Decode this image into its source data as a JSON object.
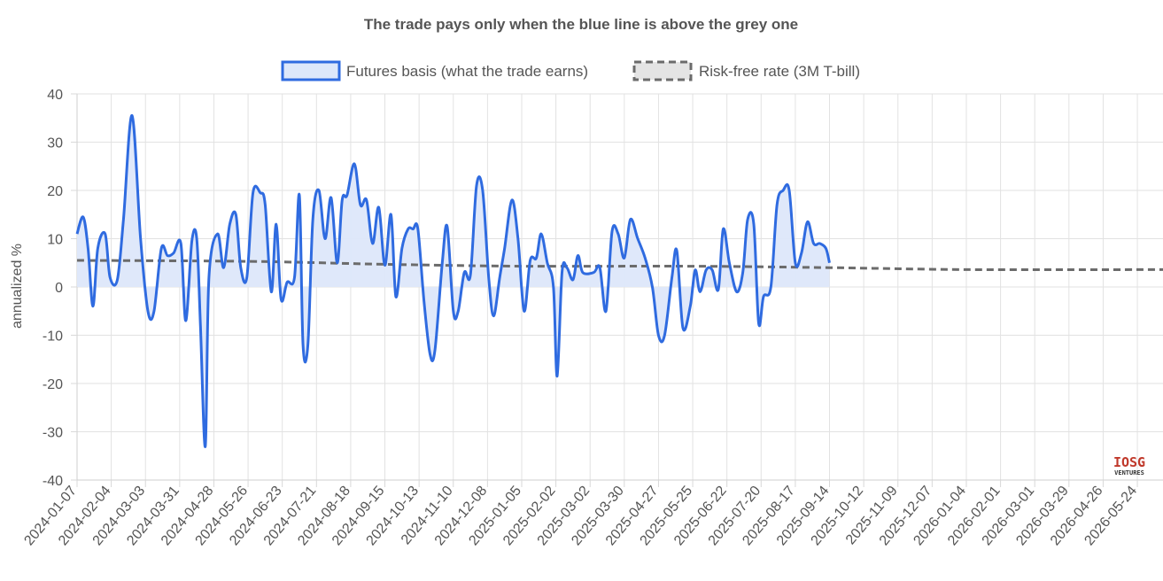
{
  "chart_data": {
    "type": "line",
    "title": "The trade pays only when the blue line is above the grey one",
    "ylabel": "annualized %",
    "xlabel": "",
    "ylim": [
      -40,
      40
    ],
    "yticks": [
      40,
      30,
      20,
      10,
      0,
      -10,
      -20,
      -30,
      -40
    ],
    "legend": "top-center",
    "grid": true,
    "colors": {
      "basis": "#2f6be0",
      "basis_fill": "#dde7fa",
      "rate": "#6b6b6b"
    },
    "x_tick_labels": [
      "2024-01-07",
      "2024-02-04",
      "2024-03-03",
      "2024-03-31",
      "2024-04-28",
      "2024-05-26",
      "2024-06-23",
      "2024-07-21",
      "2024-08-18",
      "2024-09-15",
      "2024-10-13",
      "2024-11-10",
      "2024-12-08",
      "2025-01-05",
      "2025-02-02",
      "2025-03-02",
      "2025-03-30",
      "2025-04-27",
      "2025-05-25",
      "2025-06-22",
      "2025-07-20",
      "2025-08-17",
      "2025-09-14",
      "2025-10-12",
      "2025-11-09",
      "2025-12-07",
      "2026-01-04",
      "2026-02-01",
      "2026-03-01",
      "2026-03-29",
      "2026-04-26",
      "2026-05-24"
    ],
    "x_start": "2024-01-07",
    "x_end": "2026-06-14",
    "series": [
      {
        "name": "Futures basis (what the trade earns)",
        "style": "solid-filled",
        "points": [
          [
            "2024-01-07",
            11
          ],
          [
            "2024-01-12",
            14.5
          ],
          [
            "2024-01-16",
            8
          ],
          [
            "2024-01-20",
            -4
          ],
          [
            "2024-01-24",
            8
          ],
          [
            "2024-01-30",
            11
          ],
          [
            "2024-02-03",
            2
          ],
          [
            "2024-02-09",
            1.5
          ],
          [
            "2024-02-14",
            14
          ],
          [
            "2024-02-21",
            35.5
          ],
          [
            "2024-02-28",
            10
          ],
          [
            "2024-03-05",
            -5
          ],
          [
            "2024-03-10",
            -5
          ],
          [
            "2024-03-16",
            8
          ],
          [
            "2024-03-21",
            6.5
          ],
          [
            "2024-03-26",
            7
          ],
          [
            "2024-04-01",
            9
          ],
          [
            "2024-04-05",
            -7
          ],
          [
            "2024-04-10",
            9.5
          ],
          [
            "2024-04-14",
            10
          ],
          [
            "2024-04-17",
            -8
          ],
          [
            "2024-04-21",
            -33
          ],
          [
            "2024-04-24",
            2
          ],
          [
            "2024-05-01",
            11
          ],
          [
            "2024-05-06",
            4
          ],
          [
            "2024-05-11",
            13
          ],
          [
            "2024-05-16",
            15
          ],
          [
            "2024-05-20",
            4
          ],
          [
            "2024-05-25",
            2
          ],
          [
            "2024-05-30",
            19.5
          ],
          [
            "2024-06-05",
            19.5
          ],
          [
            "2024-06-09",
            17
          ],
          [
            "2024-06-14",
            -1
          ],
          [
            "2024-06-18",
            13
          ],
          [
            "2024-06-22",
            -2.5
          ],
          [
            "2024-06-27",
            1
          ],
          [
            "2024-07-03",
            2
          ],
          [
            "2024-07-07",
            19
          ],
          [
            "2024-07-10",
            -12
          ],
          [
            "2024-07-14",
            -12
          ],
          [
            "2024-07-18",
            14
          ],
          [
            "2024-07-23",
            20
          ],
          [
            "2024-07-28",
            10
          ],
          [
            "2024-08-02",
            18.5
          ],
          [
            "2024-08-07",
            5
          ],
          [
            "2024-08-11",
            18
          ],
          [
            "2024-08-15",
            19
          ],
          [
            "2024-08-21",
            25.5
          ],
          [
            "2024-08-26",
            17
          ],
          [
            "2024-08-31",
            18
          ],
          [
            "2024-09-05",
            9
          ],
          [
            "2024-09-10",
            16.5
          ],
          [
            "2024-09-15",
            4.5
          ],
          [
            "2024-09-20",
            15
          ],
          [
            "2024-09-24",
            -2
          ],
          [
            "2024-09-29",
            8
          ],
          [
            "2024-10-04",
            12
          ],
          [
            "2024-10-08",
            12
          ],
          [
            "2024-10-12",
            12
          ],
          [
            "2024-10-17",
            -3
          ],
          [
            "2024-10-22",
            -14
          ],
          [
            "2024-10-26",
            -13
          ],
          [
            "2024-11-01",
            5
          ],
          [
            "2024-11-05",
            12.5
          ],
          [
            "2024-11-10",
            -5
          ],
          [
            "2024-11-14",
            -5
          ],
          [
            "2024-11-19",
            3
          ],
          [
            "2024-11-24",
            2.5
          ],
          [
            "2024-11-29",
            21
          ],
          [
            "2024-12-04",
            20
          ],
          [
            "2024-12-09",
            2
          ],
          [
            "2024-12-13",
            -6
          ],
          [
            "2024-12-18",
            2
          ],
          [
            "2024-12-22",
            8
          ],
          [
            "2024-12-28",
            18
          ],
          [
            "2025-01-02",
            10
          ],
          [
            "2025-01-07",
            -5
          ],
          [
            "2025-01-12",
            5.5
          ],
          [
            "2025-01-17",
            6
          ],
          [
            "2025-01-21",
            11
          ],
          [
            "2025-01-26",
            5
          ],
          [
            "2025-01-31",
            0
          ],
          [
            "2025-02-03",
            -18.5
          ],
          [
            "2025-02-07",
            3
          ],
          [
            "2025-02-11",
            4
          ],
          [
            "2025-02-16",
            1.5
          ],
          [
            "2025-02-20",
            6.5
          ],
          [
            "2025-02-24",
            3
          ],
          [
            "2025-03-05",
            3
          ],
          [
            "2025-03-10",
            4
          ],
          [
            "2025-03-15",
            -5
          ],
          [
            "2025-03-20",
            11.5
          ],
          [
            "2025-03-25",
            11
          ],
          [
            "2025-03-30",
            6
          ],
          [
            "2025-04-04",
            14
          ],
          [
            "2025-04-10",
            10
          ],
          [
            "2025-04-16",
            6
          ],
          [
            "2025-04-22",
            0
          ],
          [
            "2025-04-27",
            -10
          ],
          [
            "2025-05-02",
            -10
          ],
          [
            "2025-05-08",
            2
          ],
          [
            "2025-05-12",
            7.5
          ],
          [
            "2025-05-17",
            -8.5
          ],
          [
            "2025-05-23",
            -4
          ],
          [
            "2025-05-27",
            3.5
          ],
          [
            "2025-05-31",
            -1
          ],
          [
            "2025-06-05",
            3.5
          ],
          [
            "2025-06-10",
            3.5
          ],
          [
            "2025-06-15",
            -0.5
          ],
          [
            "2025-06-19",
            12
          ],
          [
            "2025-06-24",
            5
          ],
          [
            "2025-06-30",
            -1
          ],
          [
            "2025-07-05",
            3
          ],
          [
            "2025-07-09",
            14
          ],
          [
            "2025-07-14",
            13
          ],
          [
            "2025-07-18",
            -7.5
          ],
          [
            "2025-07-22",
            -2
          ],
          [
            "2025-07-28",
            0
          ],
          [
            "2025-08-02",
            17
          ],
          [
            "2025-08-07",
            20
          ],
          [
            "2025-08-12",
            20
          ],
          [
            "2025-08-17",
            5
          ],
          [
            "2025-08-22",
            7
          ],
          [
            "2025-08-27",
            13.5
          ],
          [
            "2025-09-01",
            9
          ],
          [
            "2025-09-06",
            9
          ],
          [
            "2025-09-11",
            8
          ],
          [
            "2025-09-14",
            5
          ]
        ]
      },
      {
        "name": "Risk-free rate (3M T-bill)",
        "style": "dashed",
        "points": [
          [
            "2024-01-07",
            5.5
          ],
          [
            "2024-05-26",
            5.3
          ],
          [
            "2024-09-15",
            4.7
          ],
          [
            "2025-01-05",
            4.3
          ],
          [
            "2025-05-25",
            4.3
          ],
          [
            "2025-09-14",
            4.0
          ],
          [
            "2026-01-04",
            3.6
          ],
          [
            "2026-06-14",
            3.6
          ]
        ]
      }
    ]
  },
  "logo": {
    "text": "IOSG",
    "subtext": "VENTURES"
  }
}
